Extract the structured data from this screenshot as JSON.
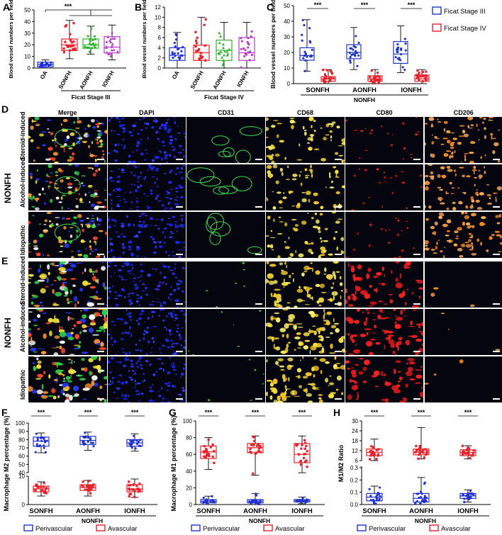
{
  "colors": {
    "oa": "#1d2fd6",
    "sonfh": "#e8202a",
    "aonfh": "#2fb32e",
    "ionfh": "#b83cc4",
    "stage3": "#2236c4",
    "stage4": "#e8202a",
    "perivascular": "#2233cc",
    "avascular": "#e8202a"
  },
  "panels": {
    "A": "A",
    "B": "B",
    "C": "C",
    "D": "D",
    "E": "E",
    "F": "F",
    "G": "G",
    "H": "H"
  },
  "chart_data": [
    {
      "panel": "A",
      "type": "box",
      "ylabel": "Blood vessel numbers per field",
      "ylim": [
        0,
        50
      ],
      "yticks": [
        0,
        10,
        20,
        30,
        40,
        50
      ],
      "categories": [
        "OA",
        "SONFH",
        "AONFH",
        "IONFH"
      ],
      "group_label": "Ficat Stage III",
      "significance": "***",
      "boxes": [
        {
          "min": 0,
          "q1": 1,
          "median": 3,
          "q3": 5,
          "max": 7
        },
        {
          "min": 8,
          "q1": 15,
          "median": 20,
          "q3": 25,
          "max": 41
        },
        {
          "min": 12,
          "q1": 17,
          "median": 20,
          "q3": 25,
          "max": 36
        },
        {
          "min": 7,
          "q1": 13,
          "median": 18,
          "q3": 27,
          "max": 37
        }
      ]
    },
    {
      "panel": "B",
      "type": "box",
      "ylabel": "Blood vessel numbers per field",
      "ylim": [
        0,
        12
      ],
      "yticks": [
        0,
        2,
        4,
        6,
        8,
        10,
        12
      ],
      "categories": [
        "OA",
        "SONFH",
        "AONFH",
        "IONFH"
      ],
      "group_label": "Ficat Stage IV",
      "boxes": [
        {
          "min": 0,
          "q1": 1.5,
          "median": 2.5,
          "q3": 4,
          "max": 7
        },
        {
          "min": 0,
          "q1": 1.5,
          "median": 3,
          "q3": 4.5,
          "max": 10
        },
        {
          "min": 0,
          "q1": 1.5,
          "median": 3.5,
          "q3": 5.5,
          "max": 9
        },
        {
          "min": 0,
          "q1": 1.5,
          "median": 3,
          "q3": 6,
          "max": 9
        }
      ]
    },
    {
      "panel": "C",
      "type": "box",
      "ylabel": "Blood vessel numbers per field",
      "ylim": [
        0,
        50
      ],
      "yticks": [
        0,
        10,
        20,
        30,
        40,
        50
      ],
      "categories": [
        "SONFH",
        "AONFH",
        "IONFH"
      ],
      "xlabel": "NONFH",
      "significance": "***",
      "series": [
        {
          "name": "Ficat Stage III",
          "boxes": [
            {
              "min": 8,
              "q1": 15,
              "median": 18,
              "q3": 23,
              "max": 41
            },
            {
              "min": 9,
              "q1": 16,
              "median": 20,
              "q3": 25,
              "max": 36
            },
            {
              "min": 7,
              "q1": 13,
              "median": 19,
              "q3": 27,
              "max": 37
            }
          ]
        },
        {
          "name": "Ficat Stage IV",
          "boxes": [
            {
              "min": 0,
              "q1": 1.5,
              "median": 3,
              "q3": 4.5,
              "max": 9
            },
            {
              "min": 0,
              "q1": 1.5,
              "median": 3,
              "q3": 5,
              "max": 9
            },
            {
              "min": 0,
              "q1": 1.5,
              "median": 3,
              "q3": 5.5,
              "max": 9
            }
          ]
        }
      ]
    },
    {
      "panel": "F",
      "type": "box",
      "ylabel": "Macrophage M2 percentage (%)",
      "yticks": [
        0,
        10,
        20,
        30,
        40,
        50,
        60,
        70,
        80,
        90,
        100
      ],
      "categories": [
        "SONFH",
        "AONFH",
        "IONFH"
      ],
      "xlabel": "NONFH",
      "significance": "***",
      "series": [
        {
          "name": "Perivascular",
          "boxes": [
            {
              "min": 64,
              "q1": 72,
              "median": 78,
              "q3": 83,
              "max": 88
            },
            {
              "min": 67,
              "q1": 74,
              "median": 79,
              "q3": 84,
              "max": 89
            },
            {
              "min": 66,
              "q1": 72,
              "median": 76,
              "q3": 80,
              "max": 87
            }
          ]
        },
        {
          "name": "Avascular",
          "boxes": [
            {
              "min": 3,
              "q1": 4.5,
              "median": 5.5,
              "q3": 6.5,
              "max": 8
            },
            {
              "min": 3,
              "q1": 5,
              "median": 6,
              "q3": 7,
              "max": 8.5
            },
            {
              "min": 2.5,
              "q1": 4.5,
              "median": 5.5,
              "q3": 7,
              "max": 9
            }
          ]
        }
      ]
    },
    {
      "panel": "G",
      "type": "box",
      "ylabel": "Macrophage M1 percentage (%)",
      "ylim": [
        0,
        100
      ],
      "yticks": [
        0,
        20,
        40,
        60,
        80,
        100
      ],
      "categories": [
        "SONFH",
        "AONFH",
        "IONFH"
      ],
      "xlabel": "NONFH",
      "significance": "***",
      "series": [
        {
          "name": "Perivascular",
          "boxes": [
            {
              "min": 0,
              "q1": 2,
              "median": 4,
              "q3": 6,
              "max": 10
            },
            {
              "min": 0,
              "q1": 2,
              "median": 4,
              "q3": 6,
              "max": 13
            },
            {
              "min": 1,
              "q1": 3,
              "median": 4.5,
              "q3": 6,
              "max": 9
            }
          ]
        },
        {
          "name": "Avascular",
          "boxes": [
            {
              "min": 42,
              "q1": 55,
              "median": 63,
              "q3": 70,
              "max": 80
            },
            {
              "min": 35,
              "q1": 62,
              "median": 68,
              "q3": 73,
              "max": 82
            },
            {
              "min": 38,
              "q1": 50,
              "median": 60,
              "q3": 73,
              "max": 82
            }
          ]
        }
      ]
    },
    {
      "panel": "H",
      "type": "box",
      "ylabel": "M1/M2 Ratio",
      "yticks_lower": [
        0.0,
        0.1,
        0.2,
        0.3
      ],
      "yticks_upper": [
        6,
        12,
        18,
        24,
        30
      ],
      "categories": [
        "SONFH",
        "AONFH",
        "IONFH"
      ],
      "xlabel": "NONFH",
      "significance": "***",
      "series": [
        {
          "name": "Perivascular",
          "boxes": [
            {
              "min": 0.0,
              "q1": 0.03,
              "median": 0.06,
              "q3": 0.09,
              "max": 0.15
            },
            {
              "min": 0.0,
              "q1": 0.02,
              "median": 0.05,
              "q3": 0.09,
              "max": 0.22
            },
            {
              "min": 0.02,
              "q1": 0.05,
              "median": 0.07,
              "q3": 0.09,
              "max": 0.12
            }
          ]
        },
        {
          "name": "Avascular",
          "boxes": [
            {
              "min": 6,
              "q1": 9,
              "median": 11,
              "q3": 13,
              "max": 19
            },
            {
              "min": 7,
              "q1": 9.5,
              "median": 11,
              "q3": 13,
              "max": 26
            },
            {
              "min": 7,
              "q1": 9,
              "median": 11,
              "q3": 12.5,
              "max": 15
            }
          ]
        }
      ]
    }
  ],
  "micrographs": {
    "columns": [
      "Merge",
      "DAPI",
      "CD31",
      "CD68",
      "CD80",
      "CD206"
    ],
    "group_label": "NONFH",
    "rows_D": [
      "Steroid-induced",
      "Alcohol-induced",
      "Idiopathic"
    ],
    "rows_E": [
      "Steroid-induced",
      "Alcohol-induced",
      "Idiopathic"
    ]
  },
  "legends": {
    "C": [
      "Ficat Stage III",
      "Ficat Stage IV"
    ],
    "FGH": [
      "Perivascular",
      "Avascular"
    ]
  }
}
